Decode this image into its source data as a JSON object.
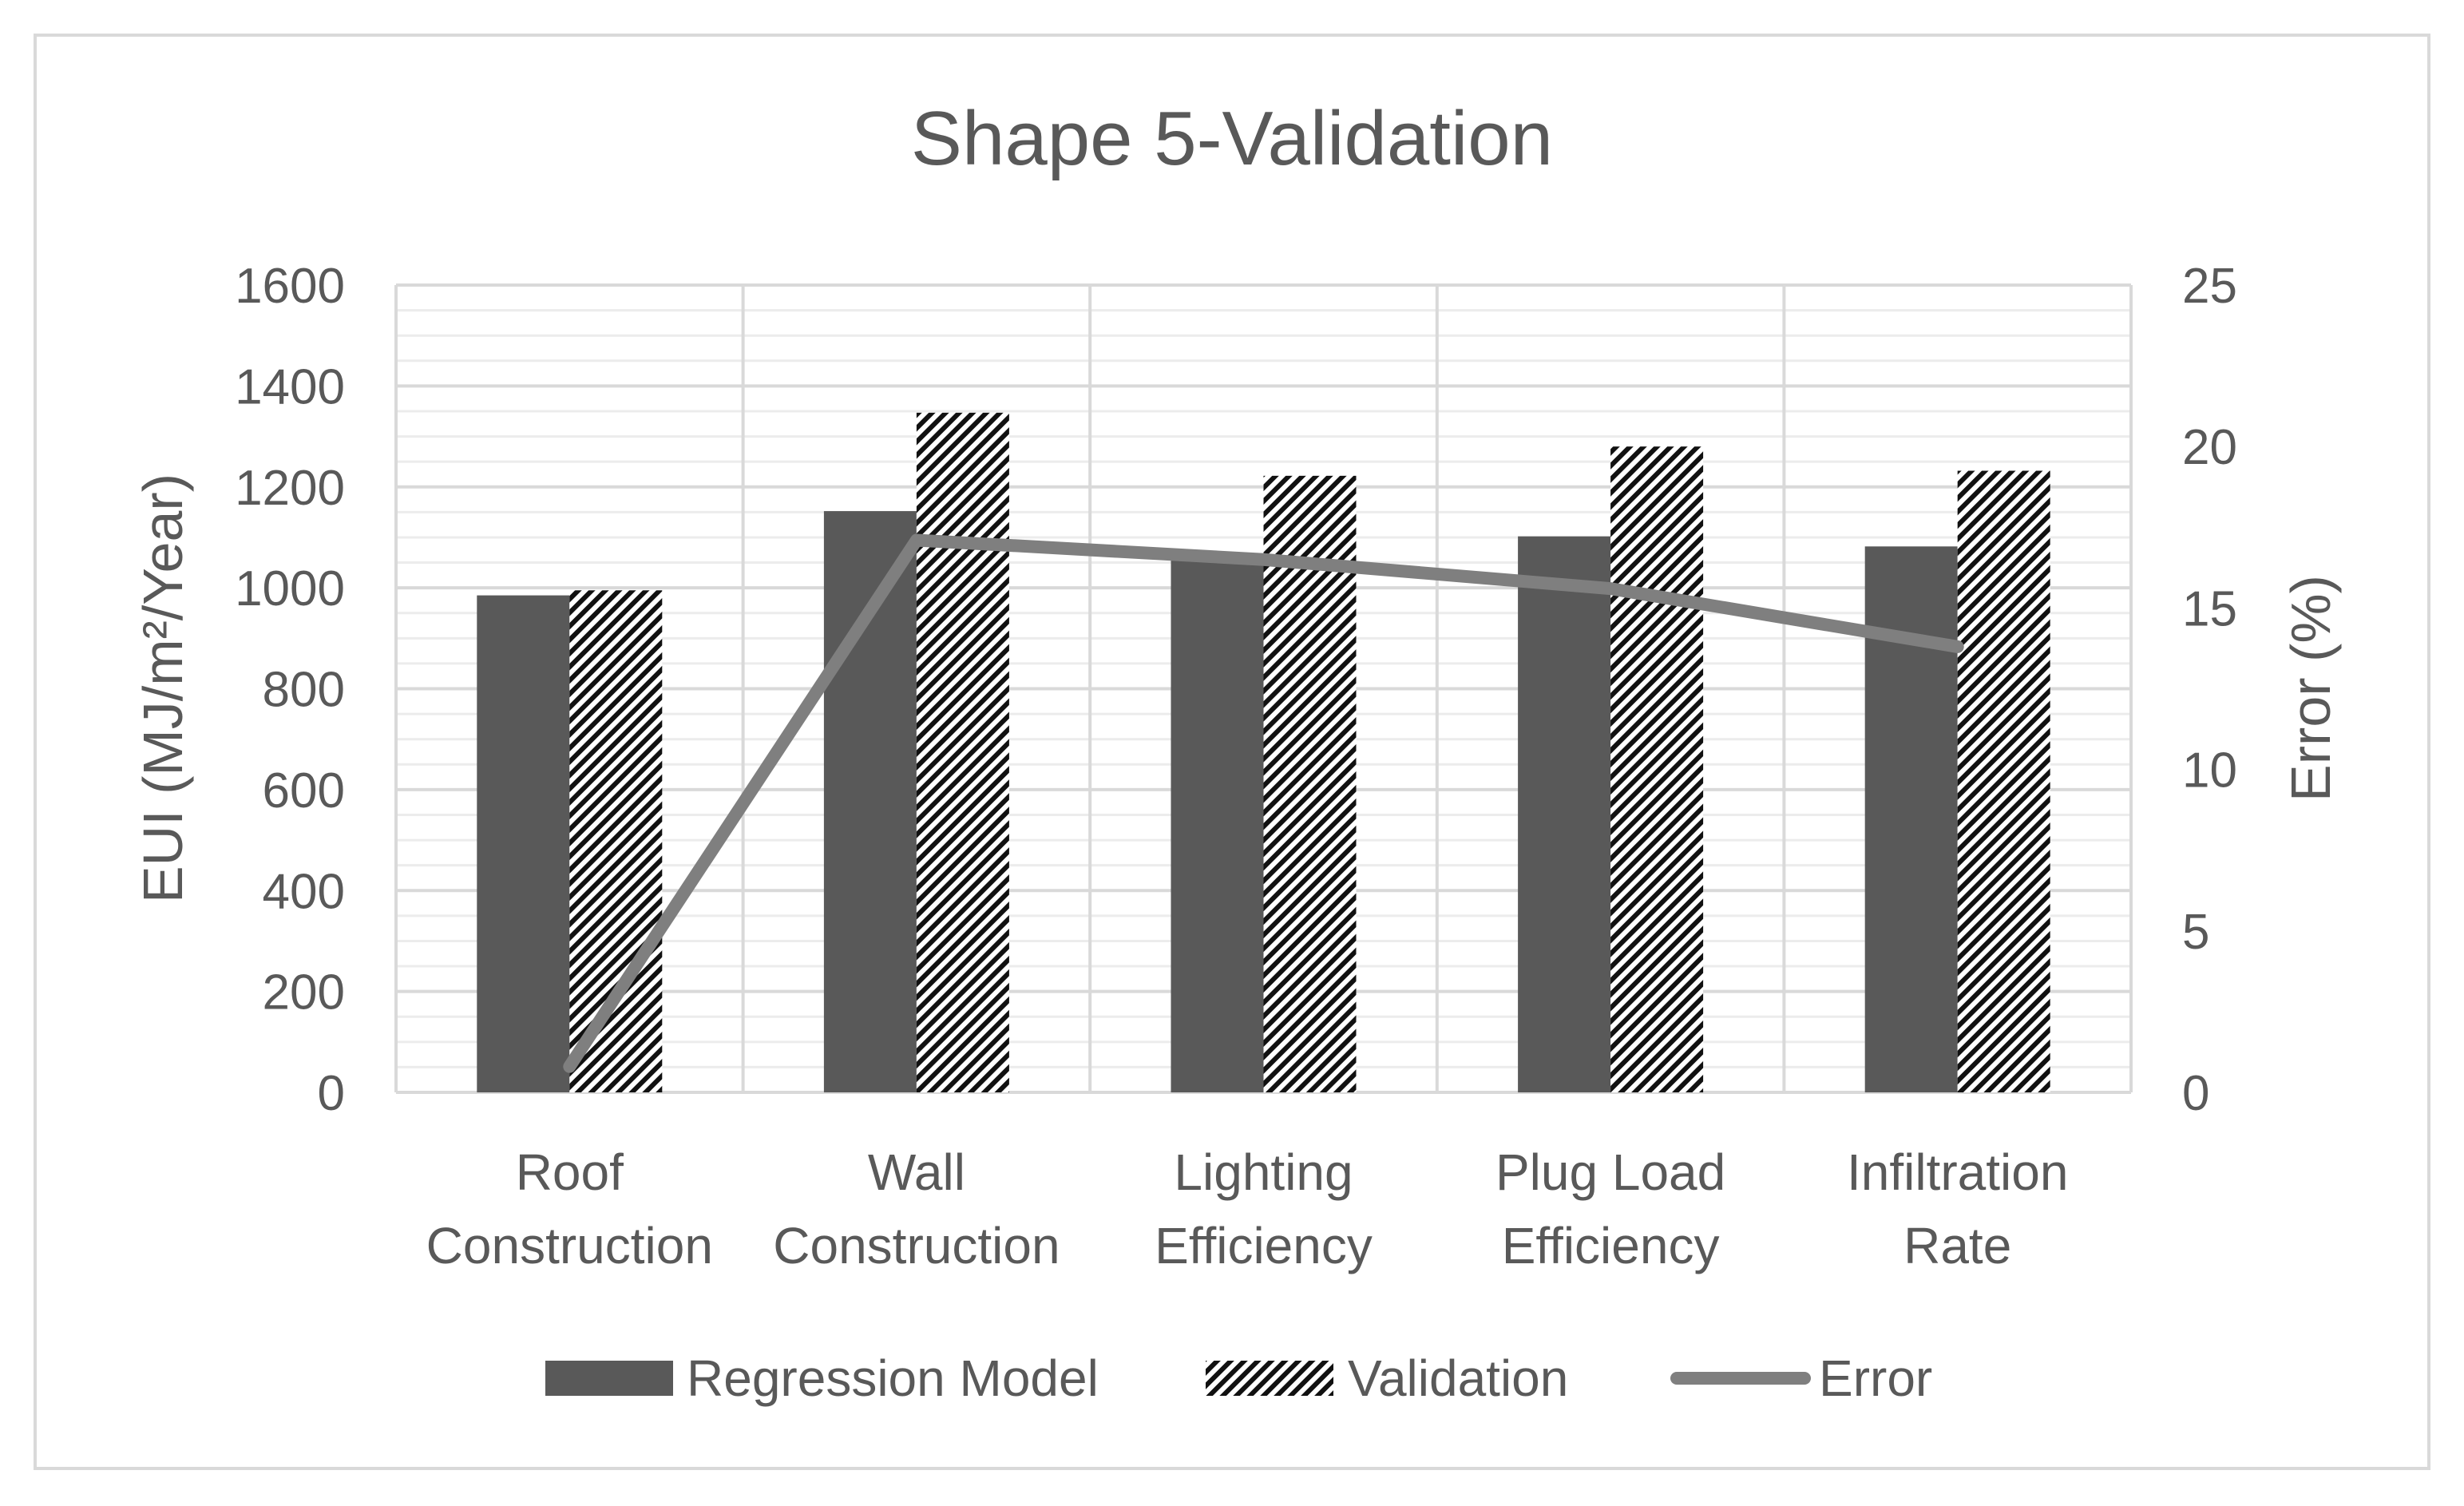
{
  "chart_data": {
    "type": "bar",
    "title": "Shape 5-Validation",
    "ylabel": "EUI (MJ/m²/Year)",
    "y2label": "Error (%)",
    "categories": [
      [
        "Roof",
        "Construction"
      ],
      [
        "Wall",
        "Construction"
      ],
      [
        "Lighting",
        "Efficiency"
      ],
      [
        "Plug Load",
        "Efficiency"
      ],
      [
        "Infiltration",
        "Rate"
      ]
    ],
    "ylim": [
      0,
      1600
    ],
    "yticks": [
      "0",
      "200",
      "400",
      "600",
      "800",
      "1000",
      "1200",
      "1400",
      "1600"
    ],
    "y2lim": [
      0,
      25
    ],
    "y2ticks": [
      "0",
      "5",
      "10",
      "15",
      "20",
      "25"
    ],
    "grid": true,
    "legend_position": "bottom",
    "series": [
      {
        "name": "Regression Model",
        "type": "bar",
        "axis": "left",
        "style": "solid",
        "color": "#595959",
        "values": [
          985,
          1152,
          1055,
          1102,
          1082
        ]
      },
      {
        "name": "Validation",
        "type": "bar",
        "axis": "left",
        "style": "hatched",
        "color": "#000000",
        "values": [
          995,
          1347,
          1222,
          1280,
          1232
        ]
      },
      {
        "name": "Error",
        "type": "line",
        "axis": "right",
        "color": "#7f7f7f",
        "values": [
          0.8,
          17.1,
          16.5,
          15.6,
          13.8
        ]
      }
    ]
  }
}
